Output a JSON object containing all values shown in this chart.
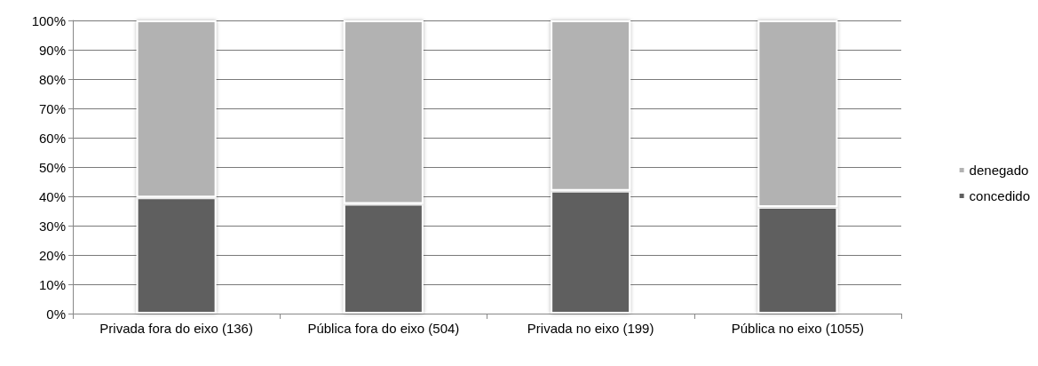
{
  "chart_data": {
    "type": "bar",
    "stacked": true,
    "categories": [
      "Privada fora do eixo (136)",
      "Pública fora do eixo (504)",
      "Privada no eixo (199)",
      "Pública no eixo (1055)"
    ],
    "series": [
      {
        "name": "concedido",
        "color": "#5f5f5f",
        "values": [
          39.6,
          37.4,
          41.9,
          36.4
        ]
      },
      {
        "name": "denegado",
        "color": "#b2b2b2",
        "values": [
          60.4,
          62.6,
          58.1,
          63.6
        ]
      }
    ],
    "ylim": [
      0,
      100
    ],
    "yticks": [
      {
        "value": 0,
        "label": "0%"
      },
      {
        "value": 10,
        "label": "10%"
      },
      {
        "value": 20,
        "label": "20%"
      },
      {
        "value": 30,
        "label": "30%"
      },
      {
        "value": 40,
        "label": "40%"
      },
      {
        "value": 50,
        "label": "50%"
      },
      {
        "value": 60,
        "label": "60%"
      },
      {
        "value": 70,
        "label": "70%"
      },
      {
        "value": 80,
        "label": "80%"
      },
      {
        "value": 90,
        "label": "90%"
      },
      {
        "value": 100,
        "label": "100%"
      }
    ],
    "grid": "y",
    "legend": "right"
  }
}
